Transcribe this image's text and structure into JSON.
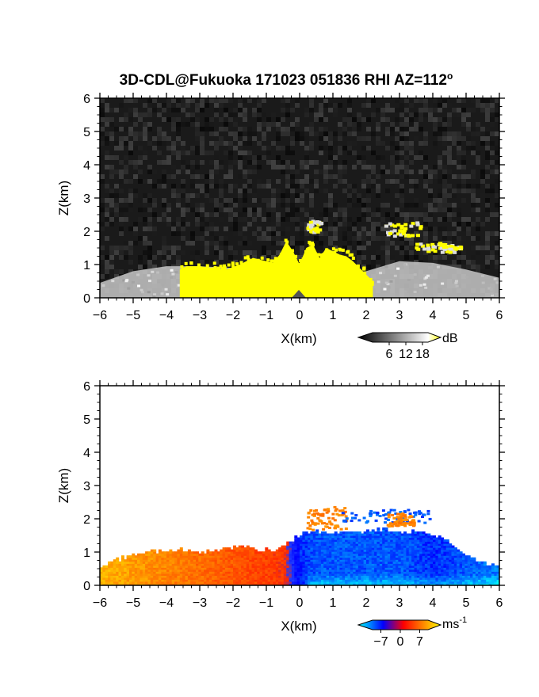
{
  "chart_data": [
    {
      "type": "heatmap",
      "title": "3D-CDL@Fukuoka 171023 051836 RHI AZ=112",
      "title_superscript": "o",
      "quantity": "reflectivity",
      "xlabel": "X(km)",
      "ylabel": "Z(km)",
      "xlim": [
        -6,
        6
      ],
      "ylim": [
        0,
        6
      ],
      "xticks": [
        "-6",
        "-5",
        "-4",
        "-3",
        "-2",
        "-1",
        "0",
        "1",
        "2",
        "3",
        "4",
        "5",
        "6"
      ],
      "yticks": [
        "0",
        "1",
        "2",
        "3",
        "4",
        "5",
        "6"
      ],
      "colorbar": {
        "unit": "dB",
        "ticks": [
          6,
          12,
          18
        ],
        "tick_labels": [
          "6",
          "12",
          "18"
        ],
        "range": [
          0,
          20
        ],
        "colors": [
          "#000000",
          "#ffffff",
          "#ffff00"
        ]
      },
      "background_color": "#1a1a1a",
      "echo_color": "#ffff00",
      "echo_top_profile": {
        "x": [
          -3.6,
          -3.4,
          -3.0,
          -2.6,
          -2.2,
          -1.8,
          -1.4,
          -1.0,
          -0.8,
          -0.6,
          -0.4,
          -0.2,
          0,
          0.2,
          0.4,
          0.6,
          0.8,
          1.0,
          1.2,
          1.4,
          1.6,
          1.8,
          2.0,
          2.2
        ],
        "z": [
          0.85,
          0.95,
          0.95,
          0.9,
          0.85,
          1.0,
          1.2,
          1.1,
          1.05,
          1.3,
          1.7,
          1.4,
          1.0,
          1.5,
          1.6,
          1.2,
          1.5,
          1.4,
          1.3,
          1.25,
          1.1,
          0.9,
          0.7,
          0.5
        ]
      },
      "elevated_echo": [
        {
          "x0": 0.2,
          "x1": 0.6,
          "z0": 2.0,
          "z1": 2.35
        },
        {
          "x0": 2.5,
          "x1": 3.6,
          "z0": 1.9,
          "z1": 2.3
        },
        {
          "x0": 3.4,
          "x1": 4.6,
          "z0": 1.4,
          "z1": 1.7
        },
        {
          "x0": 4.2,
          "x1": 4.8,
          "z0": 1.5,
          "z1": 1.6
        }
      ],
      "surface_clutter_top": {
        "x": [
          -6,
          -5,
          -4,
          -3,
          -2,
          -1,
          0,
          1,
          2,
          3,
          4,
          5,
          6
        ],
        "z": [
          0.45,
          0.8,
          0.95,
          0.95,
          0.9,
          0.8,
          0.7,
          0.65,
          0.8,
          1.1,
          1.05,
          0.85,
          0.6
        ]
      }
    },
    {
      "type": "heatmap",
      "quantity": "radial velocity",
      "xlabel": "X(km)",
      "ylabel": "Z(km)",
      "xlim": [
        -6,
        6
      ],
      "ylim": [
        0,
        6
      ],
      "xticks": [
        "-6",
        "-5",
        "-4",
        "-3",
        "-2",
        "-1",
        "0",
        "1",
        "2",
        "3",
        "4",
        "5",
        "6"
      ],
      "yticks": [
        "0",
        "1",
        "2",
        "3",
        "4",
        "5",
        "6"
      ],
      "colorbar": {
        "unit": "ms",
        "unit_superscript": "-1",
        "ticks": [
          -7,
          0,
          7
        ],
        "tick_labels": [
          "-7",
          "0",
          "7"
        ],
        "range": [
          -10,
          10
        ],
        "colors": [
          "#00ffff",
          "#0000ff",
          "#ff0000",
          "#ffff00"
        ]
      },
      "top_profile": {
        "x": [
          -6.0,
          -5.6,
          -5.2,
          -4.8,
          -4.4,
          -4.0,
          -3.6,
          -3.2,
          -2.8,
          -2.4,
          -2.0,
          -1.6,
          -1.2,
          -0.8,
          -0.4,
          0.0,
          0.4,
          0.8,
          1.2,
          1.6,
          2.0,
          2.4,
          2.8,
          3.2,
          3.6,
          4.0,
          4.4,
          4.8,
          5.2,
          5.6,
          6.0
        ],
        "z": [
          0.5,
          0.7,
          0.85,
          0.95,
          1.0,
          1.05,
          1.05,
          1.0,
          1.0,
          1.05,
          1.1,
          1.15,
          1.05,
          1.0,
          1.25,
          1.5,
          1.6,
          1.55,
          1.55,
          1.6,
          1.6,
          1.65,
          1.6,
          1.6,
          1.55,
          1.45,
          1.3,
          1.0,
          0.8,
          0.6,
          0.5
        ]
      },
      "velocity_profile": {
        "x": [
          -6,
          -5,
          -4,
          -3,
          -2,
          -1,
          -0.5,
          0,
          0.5,
          1,
          2,
          3,
          4,
          5,
          6
        ],
        "v": [
          7,
          6,
          5,
          4,
          3,
          2,
          1.5,
          -5,
          -6,
          -6,
          -6,
          -6,
          -5,
          -6,
          -7
        ]
      },
      "elevated_echo": [
        {
          "x0": 0.2,
          "x1": 1.4,
          "z0": 1.7,
          "z1": 2.4,
          "v": 5
        },
        {
          "x0": 1.2,
          "x1": 4.0,
          "z0": 1.9,
          "z1": 2.3,
          "v": -6
        },
        {
          "x0": 2.6,
          "x1": 3.4,
          "z0": 1.8,
          "z1": 2.2,
          "v": 5
        }
      ]
    }
  ]
}
